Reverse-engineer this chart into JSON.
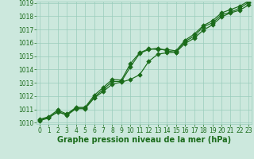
{
  "xlabel": "Graphe pression niveau de la mer (hPa)",
  "x": [
    0,
    1,
    2,
    3,
    4,
    5,
    6,
    7,
    8,
    9,
    10,
    11,
    12,
    13,
    14,
    15,
    16,
    17,
    18,
    19,
    20,
    21,
    22,
    23
  ],
  "line1": [
    1010.2,
    1010.4,
    1010.8,
    1010.6,
    1011.1,
    1011.1,
    1011.9,
    1012.5,
    1013.1,
    1013.1,
    1014.2,
    1015.2,
    1015.5,
    1015.6,
    1015.4,
    1015.3,
    1016.1,
    1016.5,
    1017.2,
    1017.5,
    1018.1,
    1018.3,
    1018.6,
    1019.05
  ],
  "line2": [
    1010.15,
    1010.35,
    1010.85,
    1010.55,
    1011.05,
    1011.05,
    1011.85,
    1012.35,
    1012.9,
    1013.05,
    1013.25,
    1013.6,
    1014.6,
    1015.15,
    1015.25,
    1015.3,
    1015.95,
    1016.35,
    1016.95,
    1017.35,
    1017.95,
    1018.25,
    1018.45,
    1018.85
  ],
  "line3": [
    1010.25,
    1010.45,
    1010.95,
    1010.65,
    1011.15,
    1011.15,
    1012.05,
    1012.65,
    1013.25,
    1013.2,
    1014.45,
    1015.25,
    1015.55,
    1015.5,
    1015.5,
    1015.4,
    1016.2,
    1016.65,
    1017.3,
    1017.65,
    1018.25,
    1018.5,
    1018.75,
    1019.15
  ],
  "line_color": "#1a6b1a",
  "bg_color": "#cce8dd",
  "grid_color": "#99ccbb",
  "label_color": "#1a6b1a",
  "ylim_min": 1010.0,
  "ylim_max": 1019.0,
  "xlim_min": 0,
  "xlim_max": 23,
  "yticks": [
    1010,
    1011,
    1012,
    1013,
    1014,
    1015,
    1016,
    1017,
    1018,
    1019
  ],
  "xticks": [
    0,
    1,
    2,
    3,
    4,
    5,
    6,
    7,
    8,
    9,
    10,
    11,
    12,
    13,
    14,
    15,
    16,
    17,
    18,
    19,
    20,
    21,
    22,
    23
  ],
  "xlabel_fontsize": 7.0,
  "tick_fontsize": 5.5,
  "marker_size": 2.8,
  "line_width": 0.85
}
